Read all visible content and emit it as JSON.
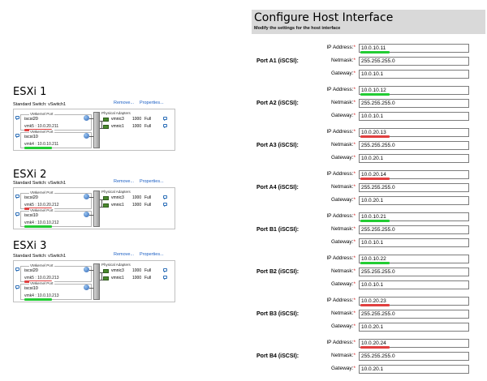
{
  "colors": {
    "green": "#22cc33",
    "red": "#e04040",
    "link": "#1a5ec4",
    "header_bg": "#d9d9d9"
  },
  "esxi": [
    {
      "title": "ESXi 1",
      "switch_label": "Standard Switch: vSwitch1",
      "remove": "Remove...",
      "properties": "Properties...",
      "port_groups": [
        {
          "caption": "VMkernel Port",
          "name": "iscsi20",
          "vmk": "vmk5 : 10.0.20.211",
          "underline": "red"
        },
        {
          "caption": "VMkernel Port",
          "name": "iscsi10",
          "vmk": "vmk4 : 10.0.10.211",
          "underline": "green"
        }
      ],
      "adapter_caption": "Physical Adapters",
      "adapters": [
        {
          "name": "vmnic3",
          "speed": "1000",
          "duplex": "Full"
        },
        {
          "name": "vmnic1",
          "speed": "1000",
          "duplex": "Full"
        }
      ]
    },
    {
      "title": "ESXi 2",
      "switch_label": "Standard Switch: vSwitch1",
      "remove": "Remove...",
      "properties": "Properties...",
      "port_groups": [
        {
          "caption": "VMkernel Port",
          "name": "iscsi20",
          "vmk": "vmk5 : 10.0.20.212",
          "underline": "red"
        },
        {
          "caption": "VMkernel Port",
          "name": "iscsi10",
          "vmk": "vmk4 : 10.0.10.212",
          "underline": "green"
        }
      ],
      "adapter_caption": "Physical Adapters",
      "adapters": [
        {
          "name": "vmnic3",
          "speed": "1000",
          "duplex": "Full"
        },
        {
          "name": "vmnic1",
          "speed": "1000",
          "duplex": "Full"
        }
      ]
    },
    {
      "title": "ESXi 3",
      "switch_label": "Standard Switch: vSwitch1",
      "remove": "Remove...",
      "properties": "Properties...",
      "port_groups": [
        {
          "caption": "VMkernel Port",
          "name": "iscsi20",
          "vmk": "vmk5 : 10.0.20.213",
          "underline": "red"
        },
        {
          "caption": "VMkernel Port",
          "name": "iscsi10",
          "vmk": "vmk4 : 10.0.10.213",
          "underline": "green"
        }
      ],
      "adapter_caption": "Physical Adapters",
      "adapters": [
        {
          "name": "vmnic3",
          "speed": "1000",
          "duplex": "Full"
        },
        {
          "name": "vmnic1",
          "speed": "1000",
          "duplex": "Full"
        }
      ]
    }
  ],
  "config": {
    "title": "Configure Host Interface",
    "subtitle": "Modify the settings for the host interface",
    "labels": {
      "ip": "IP Address:",
      "netmask": "Netmask:",
      "gateway": "Gateway:",
      "required": "*"
    },
    "ports": [
      {
        "name": "Port A1 (iSCSI):",
        "ip": "10.0.10.11",
        "netmask": "255.255.255.0",
        "gateway": "10.0.10.1",
        "underline": "green"
      },
      {
        "name": "Port A2 (iSCSI):",
        "ip": "10.0.10.12",
        "netmask": "255.255.255.0",
        "gateway": "10.0.10.1",
        "underline": "green"
      },
      {
        "name": "Port A3 (iSCSI):",
        "ip": "10.0.20.13",
        "netmask": "255.255.255.0",
        "gateway": "10.0.20.1",
        "underline": "red"
      },
      {
        "name": "Port A4 (iSCSI):",
        "ip": "10.0.20.14",
        "netmask": "255.255.255.0",
        "gateway": "10.0.20.1",
        "underline": "red"
      },
      {
        "name": "Port B1 (iSCSI):",
        "ip": "10.0.10.21",
        "netmask": "255.255.255.0",
        "gateway": "10.0.10.1",
        "underline": "green"
      },
      {
        "name": "Port B2 (iSCSI):",
        "ip": "10.0.10.22",
        "netmask": "255.255.255.0",
        "gateway": "10.0.10.1",
        "underline": "green"
      },
      {
        "name": "Port B3 (iSCSI):",
        "ip": "10.0.20.23",
        "netmask": "255.255.255.0",
        "gateway": "10.0.20.1",
        "underline": "red"
      },
      {
        "name": "Port B4 (iSCSI):",
        "ip": "10.0.20.24",
        "netmask": "255.255.255.0",
        "gateway": "10.0.20.1",
        "underline": "red"
      }
    ]
  }
}
